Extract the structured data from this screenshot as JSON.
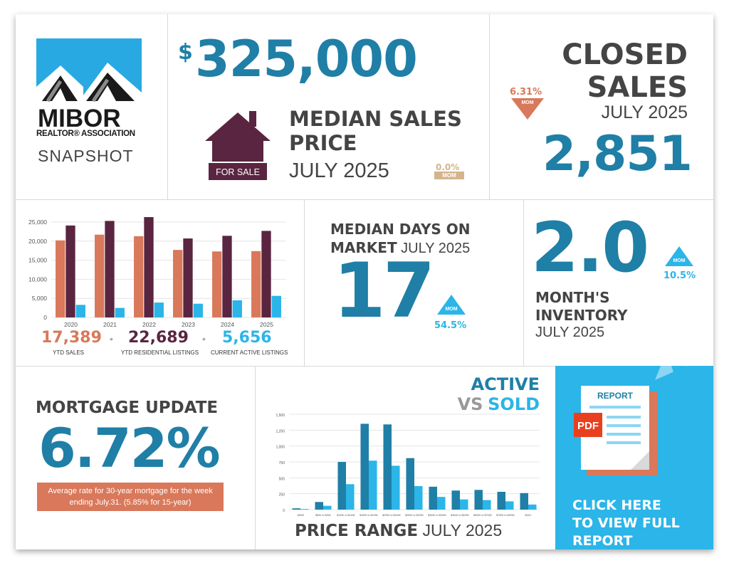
{
  "logo": {
    "name": "MIBOR",
    "association": "REALTOR® ASSOCIATION",
    "subtitle": "SNAPSHOT"
  },
  "median_price": {
    "value": "325,000",
    "currency": "$",
    "label_line1": "MEDIAN SALES",
    "label_line2": "PRICE",
    "period": "JULY 2025",
    "change": "0.0%",
    "change_unit": "MOM",
    "house_sign": "FOR SALE"
  },
  "closed_sales": {
    "title_line1": "CLOSED",
    "title_line2": "SALES",
    "period": "JULY 2025",
    "value": "2,851",
    "change": "6.31%",
    "change_unit": "MOM"
  },
  "ytd": {
    "sales_value": "17,389",
    "sales_label": "YTD SALES",
    "listings_value": "22,689",
    "listings_label": "YTD RESIDENTIAL LISTINGS",
    "active_value": "5,656",
    "active_label": "CURRENT ACTIVE LISTINGS",
    "sep": "•"
  },
  "days_on_market": {
    "title_line1": "MEDIAN DAYS ON",
    "title_line2_bold": "MARKET",
    "period": "JULY 2025",
    "value": "17",
    "change": "54.5%",
    "change_unit": "MOM"
  },
  "inventory": {
    "value": "2.0",
    "label_line1": "MONTH'S",
    "label_line2": "INVENTORY",
    "period": "JULY 2025",
    "change": "10.5%",
    "change_unit": "MOM"
  },
  "mortgage": {
    "title": "MORTGAGE UPDATE",
    "rate": "6.72%",
    "note": "Average rate for 30-year mortgage for the week ending July.31. (5.85% for 15-year)"
  },
  "price_range": {
    "title_line1": "ACTIVE",
    "title_vs": "VS",
    "title_sold": "SOLD",
    "footer_bold": "PRICE RANGE",
    "footer_period": "JULY 2025"
  },
  "report_cta": {
    "doc_label": "REPORT",
    "badge": "PDF",
    "line1": "CLICK HERE",
    "line2": "TO VIEW FULL",
    "line3": "REPORT"
  },
  "colors": {
    "teal": "#1f7fa6",
    "plum": "#5a2540",
    "orange": "#d9785a",
    "sky": "#2bb5e8",
    "tan": "#d4b48c",
    "gray": "#444444"
  },
  "chart_data": [
    {
      "type": "bar",
      "categories": [
        "2020",
        "2021",
        "2022",
        "2023",
        "2024",
        "2025"
      ],
      "series": [
        {
          "name": "YTD SALES",
          "values": [
            20200,
            21700,
            21300,
            17700,
            17300,
            17389
          ],
          "color": "#d9785a"
        },
        {
          "name": "YTD RESIDENTIAL LISTINGS",
          "values": [
            24100,
            25300,
            26300,
            20700,
            21400,
            22689
          ],
          "color": "#5a2540"
        },
        {
          "name": "CURRENT ACTIVE LISTINGS",
          "values": [
            3300,
            2500,
            3900,
            3600,
            4500,
            5656
          ],
          "color": "#2bb5e8"
        }
      ],
      "ylim": [
        0,
        25000
      ],
      "yticks": [
        "0",
        "5,000",
        "10,000",
        "15,000",
        "20,000",
        "25,000"
      ],
      "grid": true
    },
    {
      "type": "bar",
      "categories": [
        "<$50K",
        "$50K to $99K",
        "$100K to $149K",
        "$150K to $199K",
        "$200K to $249K",
        "$250K to $299K",
        "$300K to $399K",
        "$400K to $499K",
        "$500K to $749K",
        "$750K to $999K",
        "$1M+"
      ],
      "series": [
        {
          "name": "ACTIVE",
          "values": [
            20,
            120,
            750,
            1350,
            1340,
            810,
            360,
            300,
            310,
            280,
            260
          ],
          "color": "#1f7fa6"
        },
        {
          "name": "SOLD",
          "values": [
            10,
            60,
            400,
            770,
            690,
            370,
            200,
            160,
            150,
            130,
            80
          ],
          "color": "#2bb5e8"
        }
      ],
      "ylim": [
        0,
        1500
      ],
      "yticks": [
        "0",
        "250",
        "500",
        "750",
        "1,000",
        "1,250",
        "1,500"
      ],
      "grid": true
    }
  ]
}
